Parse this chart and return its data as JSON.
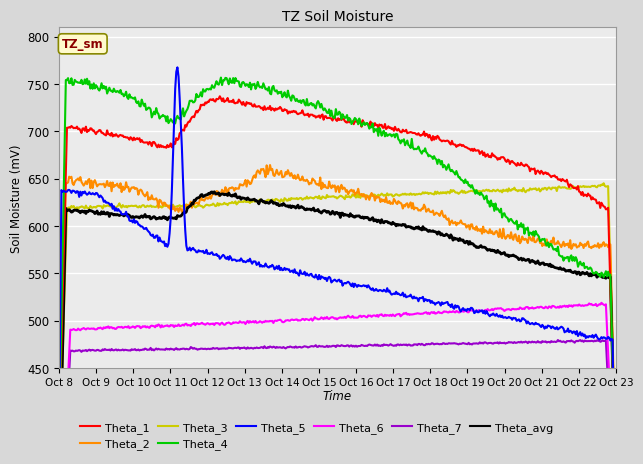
{
  "title": "TZ Soil Moisture",
  "xlabel": "Time",
  "ylabel": "Soil Moisture (mV)",
  "ylim": [
    450,
    810
  ],
  "xlim": [
    0,
    15
  ],
  "x_tick_labels": [
    "Oct 8",
    "Oct 9",
    "Oct 10",
    "Oct 11",
    "Oct 12",
    "Oct 13",
    "Oct 14",
    "Oct 15",
    "Oct 16",
    "Oct 17",
    "Oct 18",
    "Oct 19",
    "Oct 20",
    "Oct 21",
    "Oct 22",
    "Oct 23"
  ],
  "legend_label": "TZ_sm",
  "legend_label_color": "#8B0000",
  "legend_label_bg": "#FFFACD",
  "legend_label_edge": "#888800",
  "series_colors": {
    "Theta_1": "#FF0000",
    "Theta_2": "#FF8C00",
    "Theta_3": "#CCCC00",
    "Theta_4": "#00CC00",
    "Theta_5": "#0000FF",
    "Theta_6": "#FF00FF",
    "Theta_7": "#9900CC",
    "Theta_avg": "#000000"
  },
  "background_color": "#D8D8D8",
  "plot_bg": "#EBEBEB",
  "grid_color": "#FFFFFF",
  "yticks": [
    450,
    500,
    550,
    600,
    650,
    700,
    750,
    800
  ],
  "linewidth": 1.5
}
